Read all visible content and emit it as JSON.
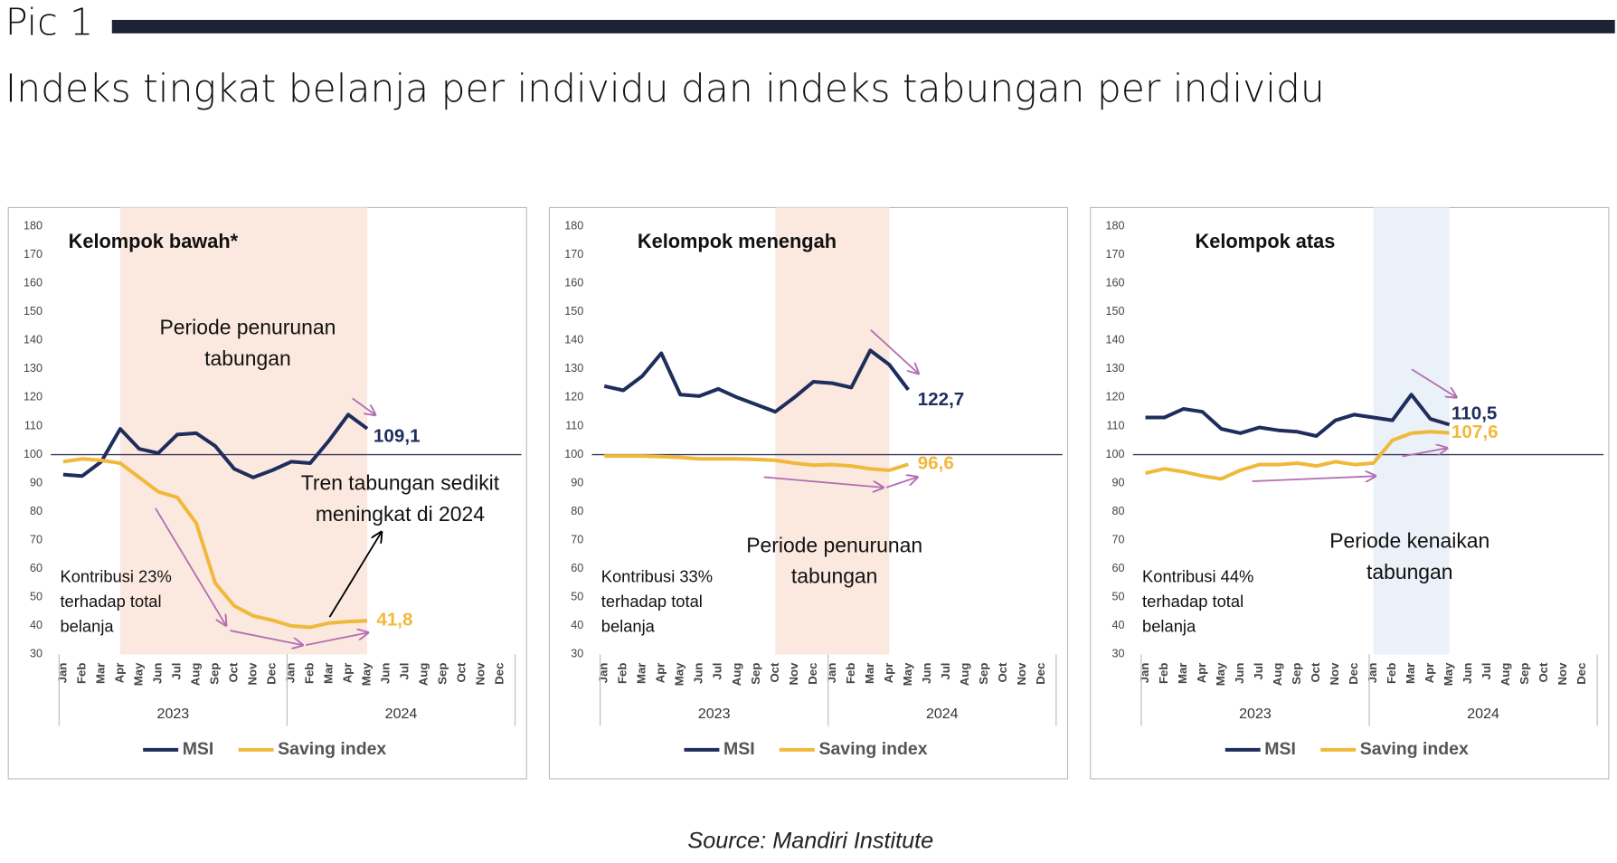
{
  "header": {
    "label": "Pic 1",
    "title": "Indeks tingkat belanja per individu dan indeks tabungan per individu"
  },
  "source": "Source: Mandiri Institute",
  "chart_data": [
    {
      "type": "line",
      "title": "Kelompok bawah*",
      "categories": [
        "Jan",
        "Feb",
        "Mar",
        "Apr",
        "May",
        "Jun",
        "Jul",
        "Aug",
        "Sep",
        "Oct",
        "Nov",
        "Dec",
        "Jan",
        "Feb",
        "Mar",
        "Apr",
        "May",
        "Jun",
        "Jul",
        "Aug",
        "Sep",
        "Oct",
        "Nov",
        "Dec"
      ],
      "years": [
        "2023",
        "2024"
      ],
      "ylim": [
        30,
        180
      ],
      "yticks": [
        30,
        40,
        50,
        60,
        70,
        80,
        90,
        100,
        110,
        120,
        130,
        140,
        150,
        160,
        170,
        180
      ],
      "reference_line": 100,
      "shade": [
        3,
        16
      ],
      "shade_color": "#fbe9df",
      "series": [
        {
          "name": "MSI",
          "color": "#1f2d5c",
          "values": [
            93,
            92.5,
            97.5,
            109,
            102,
            100.5,
            107,
            107.5,
            103,
            95,
            92,
            94.5,
            97.5,
            97,
            105,
            114,
            109.1,
            null,
            null,
            null,
            null,
            null,
            null,
            null
          ],
          "value_labels": [
            null,
            null,
            null,
            null,
            null,
            null,
            null,
            null,
            null,
            null,
            null,
            null,
            null,
            null,
            null,
            null,
            "109,1",
            null,
            null,
            null,
            null,
            null,
            null,
            null
          ]
        },
        {
          "name": "Saving index",
          "color": "#f0b93b",
          "values": [
            97.5,
            98.5,
            98,
            97,
            92,
            87,
            85,
            76,
            55,
            47,
            43.5,
            42,
            40,
            39.5,
            41,
            41.5,
            41.8,
            null,
            null,
            null,
            null,
            null,
            null,
            null
          ],
          "value_labels": [
            null,
            null,
            null,
            null,
            null,
            null,
            null,
            null,
            null,
            null,
            null,
            null,
            null,
            null,
            null,
            null,
            "41,8",
            null,
            null,
            null,
            null,
            null,
            null,
            null
          ]
        }
      ],
      "annotations": [
        [
          "Periode penurunan",
          "tabungan"
        ],
        [
          "Tren tabungan sedikit",
          "meningkat di 2024"
        ]
      ],
      "note": [
        "Kontribusi 23%",
        "terhadap total",
        "belanja"
      ]
    },
    {
      "type": "line",
      "title": "Kelompok menengah",
      "categories": [
        "Jan",
        "Feb",
        "Mar",
        "Apr",
        "May",
        "Jun",
        "Jul",
        "Aug",
        "Sep",
        "Oct",
        "Nov",
        "Dec",
        "Jan",
        "Feb",
        "Mar",
        "Apr",
        "May",
        "Jun",
        "Jul",
        "Aug",
        "Sep",
        "Oct",
        "Nov",
        "Dec"
      ],
      "years": [
        "2023",
        "2024"
      ],
      "ylim": [
        30,
        180
      ],
      "yticks": [
        30,
        40,
        50,
        60,
        70,
        80,
        90,
        100,
        110,
        120,
        130,
        140,
        150,
        160,
        170,
        180
      ],
      "reference_line": 100,
      "shade": [
        9,
        15
      ],
      "shade_color": "#fbe9df",
      "series": [
        {
          "name": "MSI",
          "color": "#1f2d5c",
          "values": [
            124,
            122.5,
            127.5,
            135.5,
            121,
            120.5,
            123,
            120,
            117.5,
            115,
            120,
            125.5,
            125,
            123.5,
            136.5,
            131.5,
            122.7,
            null,
            null,
            null,
            null,
            null,
            null,
            null
          ],
          "value_labels": [
            null,
            null,
            null,
            null,
            null,
            null,
            null,
            null,
            null,
            null,
            null,
            null,
            null,
            null,
            null,
            null,
            "122,7",
            null,
            null,
            null,
            null,
            null,
            null,
            null
          ]
        },
        {
          "name": "Saving index",
          "color": "#f0b93b",
          "values": [
            99.5,
            99.5,
            99.5,
            99.3,
            99,
            98.5,
            98.5,
            98.5,
            98.3,
            98,
            97,
            96.3,
            96.5,
            96,
            95,
            94.5,
            96.6,
            null,
            null,
            null,
            null,
            null,
            null,
            null
          ],
          "value_labels": [
            null,
            null,
            null,
            null,
            null,
            null,
            null,
            null,
            null,
            null,
            null,
            null,
            null,
            null,
            null,
            null,
            "96,6",
            null,
            null,
            null,
            null,
            null,
            null,
            null
          ]
        }
      ],
      "annotations": [
        [
          "Periode penurunan",
          "tabungan"
        ]
      ],
      "note": [
        "Kontribusi 33%",
        "terhadap total",
        "belanja"
      ]
    },
    {
      "type": "line",
      "title": "Kelompok atas",
      "categories": [
        "Jan",
        "Feb",
        "Mar",
        "Apr",
        "May",
        "Jun",
        "Jul",
        "Aug",
        "Sep",
        "Oct",
        "Nov",
        "Dec",
        "Jan",
        "Feb",
        "Mar",
        "Apr",
        "May",
        "Jun",
        "Jul",
        "Aug",
        "Sep",
        "Oct",
        "Nov",
        "Dec"
      ],
      "years": [
        "2023",
        "2024"
      ],
      "ylim": [
        30,
        180
      ],
      "yticks": [
        30,
        40,
        50,
        60,
        70,
        80,
        90,
        100,
        110,
        120,
        130,
        140,
        150,
        160,
        170,
        180
      ],
      "reference_line": 100,
      "shade": [
        12,
        16
      ],
      "shade_color": "#eaf1f8",
      "series": [
        {
          "name": "MSI",
          "color": "#1f2d5c",
          "values": [
            113,
            113,
            116,
            115,
            109,
            107.5,
            109.5,
            108.5,
            108,
            106.5,
            112,
            114,
            113,
            112,
            121,
            112.5,
            110.5,
            null,
            null,
            null,
            null,
            null,
            null,
            null
          ],
          "value_labels": [
            null,
            null,
            null,
            null,
            null,
            null,
            null,
            null,
            null,
            null,
            null,
            null,
            null,
            null,
            null,
            null,
            "110,5",
            null,
            null,
            null,
            null,
            null,
            null,
            null
          ]
        },
        {
          "name": "Saving index",
          "color": "#f0b93b",
          "values": [
            93.5,
            95,
            94,
            92.5,
            91.5,
            94.5,
            96.5,
            96.5,
            97,
            96,
            97.5,
            96.5,
            97,
            105,
            107.5,
            108,
            107.6,
            null,
            null,
            null,
            null,
            null,
            null,
            null
          ],
          "value_labels": [
            null,
            null,
            null,
            null,
            null,
            null,
            null,
            null,
            null,
            null,
            null,
            null,
            null,
            null,
            null,
            null,
            "107,6",
            null,
            null,
            null,
            null,
            null,
            null,
            null
          ]
        }
      ],
      "annotations": [
        [
          "Periode kenaikan",
          "tabungan"
        ]
      ],
      "note": [
        "Kontribusi 44%",
        "terhadap total",
        "belanja"
      ]
    }
  ]
}
